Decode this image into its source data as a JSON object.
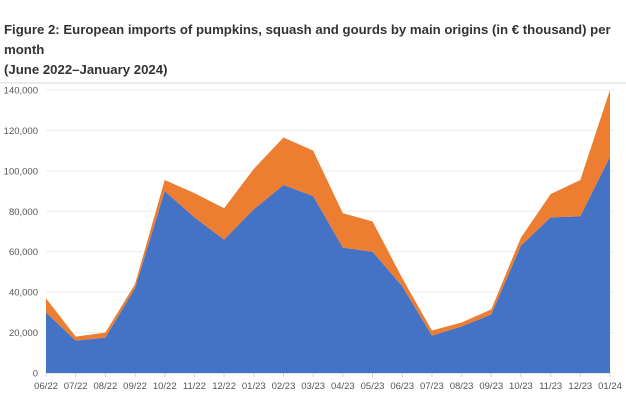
{
  "chart_data": {
    "type": "area",
    "stacked": true,
    "title_line1": "Figure 2: European imports of pumpkins, squash and gourds by main origins (in € thousand) per month",
    "title_line2": "(June 2022–January 2024)",
    "xlabel": "",
    "ylabel": "",
    "ylim": [
      0,
      140000
    ],
    "yticks": [
      0,
      20000,
      40000,
      60000,
      80000,
      100000,
      120000,
      140000
    ],
    "ytick_labels": [
      "0",
      "20,000",
      "40,000",
      "60,000",
      "80,000",
      "100,000",
      "120,000",
      "140,000"
    ],
    "grid": true,
    "legend": "none",
    "categories": [
      "06/22",
      "07/22",
      "08/22",
      "09/22",
      "10/22",
      "11/22",
      "12/22",
      "01/23",
      "02/23",
      "03/23",
      "04/23",
      "05/23",
      "06/23",
      "07/23",
      "08/23",
      "09/23",
      "10/23",
      "11/23",
      "12/23",
      "01/24"
    ],
    "series": [
      {
        "color": "#4472C4",
        "values": [
          30000,
          16000,
          17500,
          42000,
          90000,
          77000,
          66000,
          81000,
          93000,
          87500,
          62000,
          60000,
          43000,
          18500,
          23000,
          29000,
          63000,
          77000,
          77500,
          107000
        ]
      },
      {
        "color": "#ED7D31",
        "values": [
          7000,
          2000,
          2500,
          2000,
          5500,
          12000,
          15500,
          20000,
          23500,
          22500,
          17000,
          15000,
          4000,
          2500,
          2000,
          2500,
          4000,
          11500,
          18000,
          33000
        ]
      }
    ]
  }
}
